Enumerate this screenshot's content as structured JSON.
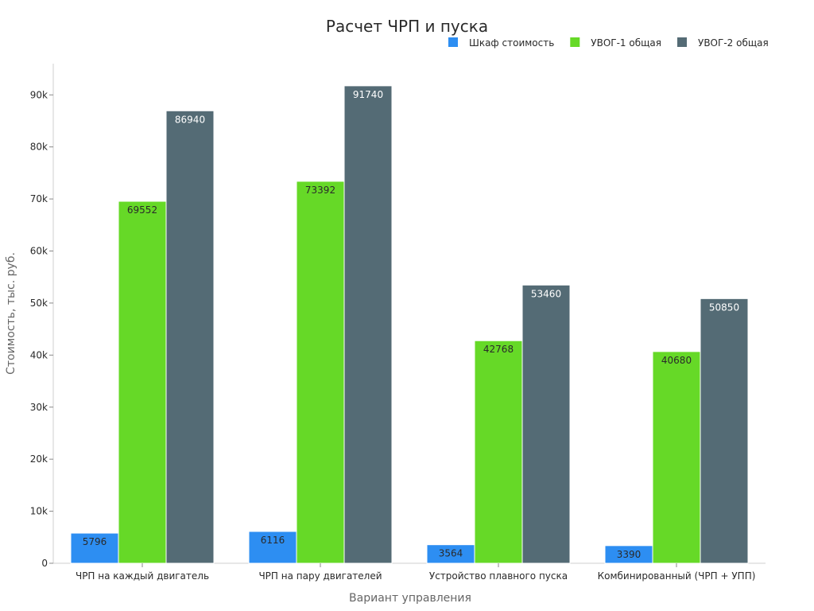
{
  "chart_data": {
    "type": "bar",
    "title": "Расчет ЧРП и пуска",
    "xlabel": "Вариант управления",
    "ylabel": "Стоимость, тыс. руб.",
    "categories": [
      "ЧРП на каждый двигатель",
      "ЧРП на пару двигателей",
      "Устройство плавного пуска",
      "Комбинированный (ЧРП + УПП)"
    ],
    "series": [
      {
        "name": "Шкаф стоимость",
        "color": "#2d8ef2",
        "label_color": "#2a2a2a",
        "values": [
          5796,
          6116,
          3564,
          3390
        ]
      },
      {
        "name": "УВОГ-1 общая",
        "color": "#66d927",
        "label_color": "#2a2a2a",
        "values": [
          69552,
          73392,
          42768,
          40680
        ]
      },
      {
        "name": "УВОГ-2 общая",
        "color": "#546b75",
        "label_color": "#ffffff",
        "values": [
          86940,
          91740,
          53460,
          50850
        ]
      }
    ],
    "ylim": [
      0,
      96000
    ],
    "yticks": [
      0,
      10000,
      20000,
      30000,
      40000,
      50000,
      60000,
      70000,
      80000,
      90000
    ],
    "ytick_labels": [
      "0",
      "10k",
      "20k",
      "30k",
      "40k",
      "50k",
      "60k",
      "70k",
      "80k",
      "90k"
    ],
    "legend_position": "top-right",
    "grid": false
  }
}
